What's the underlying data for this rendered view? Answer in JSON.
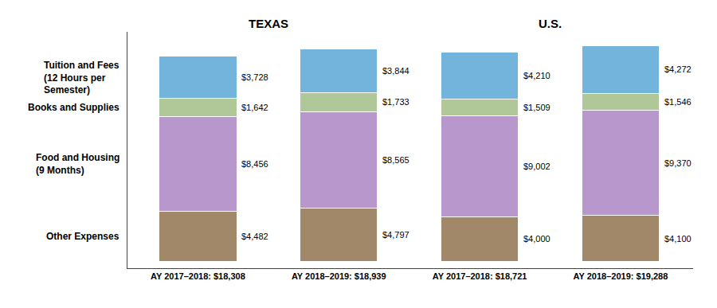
{
  "chart_data": {
    "type": "bar",
    "stacked": true,
    "data_labels": true,
    "tick_labels": "x",
    "grid": false,
    "categories": [
      "AY 2017–2018: $18,308",
      "AY 2018–2019: $18,939",
      "AY 2017–2018: $18,721",
      "AY 2018–2019: $19,288"
    ],
    "groups": [
      "TEXAS",
      "TEXAS",
      "U.S.",
      "U.S."
    ],
    "series": [
      {
        "name": "Other Expenses",
        "color": "#a08868",
        "values": [
          4482,
          4797,
          4000,
          4100
        ],
        "value_labels": [
          "$4,482",
          "$4,797",
          "$4,000",
          "$4,100"
        ]
      },
      {
        "name": "Food and Housing\n(9 Months)",
        "color": "#b898cc",
        "values": [
          8456,
          8565,
          9002,
          9370
        ],
        "value_labels": [
          "$8,456",
          "$8,565",
          "$9,002",
          "$9,370"
        ]
      },
      {
        "name": "Books and Supplies",
        "color": "#b0c898",
        "values": [
          1642,
          1733,
          1509,
          1546
        ],
        "value_labels": [
          "$1,642",
          "$1,733",
          "$1,509",
          "$1,546"
        ]
      },
      {
        "name": "Tuition and Fees\n(12 Hours per\nSemester)",
        "color": "#72b4dc",
        "values": [
          3728,
          3844,
          4210,
          4272
        ],
        "value_labels": [
          "$3,728",
          "$3,844",
          "$4,210",
          "$4,272"
        ]
      }
    ],
    "ylim": [
      -600,
      20500
    ]
  }
}
